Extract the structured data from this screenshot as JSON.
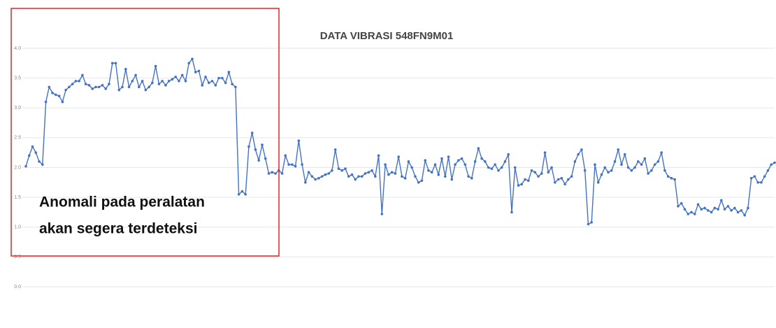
{
  "chart_data": {
    "type": "line",
    "title": "DATA VIBRASI 548FN9M01",
    "annotation": [
      "Anomali pada peralatan",
      "akan segera terdeteksi"
    ],
    "ylim": [
      0,
      4
    ],
    "yticks": [
      {
        "value": 0,
        "label": "0.0"
      },
      {
        "value": 0.5,
        "label": "0.5"
      },
      {
        "value": 1,
        "label": "1.0"
      },
      {
        "value": 1.5,
        "label": "1.5"
      },
      {
        "value": 2,
        "label": "2.0"
      },
      {
        "value": 2.5,
        "label": "2.5"
      },
      {
        "value": 3,
        "label": "3.0"
      },
      {
        "value": 3.5,
        "label": "3.5"
      },
      {
        "value": 4,
        "label": "4.0"
      }
    ],
    "grid": true,
    "series": [
      {
        "color": "#4472c4",
        "values": [
          2.02,
          2.2,
          2.35,
          2.25,
          2.1,
          2.05,
          3.1,
          3.35,
          3.25,
          3.22,
          3.2,
          3.1,
          3.3,
          3.35,
          3.4,
          3.45,
          3.45,
          3.55,
          3.4,
          3.38,
          3.32,
          3.35,
          3.35,
          3.38,
          3.32,
          3.4,
          3.75,
          3.75,
          3.3,
          3.35,
          3.65,
          3.35,
          3.45,
          3.55,
          3.35,
          3.45,
          3.3,
          3.35,
          3.42,
          3.7,
          3.4,
          3.45,
          3.38,
          3.45,
          3.48,
          3.52,
          3.45,
          3.55,
          3.45,
          3.75,
          3.82,
          3.6,
          3.62,
          3.38,
          3.52,
          3.42,
          3.45,
          3.38,
          3.5,
          3.5,
          3.42,
          3.6,
          3.4,
          3.35,
          1.55,
          1.6,
          1.55,
          2.35,
          2.58,
          2.3,
          2.12,
          2.38,
          2.15,
          1.9,
          1.92,
          1.9,
          1.95,
          1.9,
          2.2,
          2.05,
          2.05,
          2.02,
          2.45,
          2.05,
          1.75,
          1.92,
          1.85,
          1.8,
          1.82,
          1.85,
          1.88,
          1.9,
          1.95,
          2.3,
          1.98,
          1.95,
          1.98,
          1.85,
          1.88,
          1.8,
          1.85,
          1.85,
          1.9,
          1.92,
          1.95,
          1.85,
          2.2,
          1.22,
          2.05,
          1.88,
          1.92,
          1.9,
          2.18,
          1.85,
          1.82,
          2.1,
          2.0,
          1.85,
          1.75,
          1.78,
          2.12,
          1.95,
          1.92,
          2.05,
          1.88,
          2.15,
          1.85,
          2.18,
          1.8,
          2.05,
          2.12,
          2.15,
          2.05,
          1.85,
          1.82,
          2.1,
          2.32,
          2.15,
          2.1,
          2.0,
          1.98,
          2.05,
          1.95,
          2.0,
          2.1,
          2.22,
          1.25,
          2.0,
          1.7,
          1.72,
          1.8,
          1.78,
          1.95,
          1.92,
          1.85,
          1.9,
          2.25,
          1.92,
          2.0,
          1.75,
          1.8,
          1.82,
          1.72,
          1.8,
          1.85,
          2.1,
          2.22,
          2.3,
          1.95,
          1.05,
          1.08,
          2.05,
          1.75,
          1.88,
          2.0,
          1.92,
          1.95,
          2.1,
          2.3,
          2.05,
          2.22,
          2.0,
          1.95,
          2.0,
          2.1,
          2.05,
          2.15,
          1.9,
          1.95,
          2.05,
          2.1,
          2.25,
          1.95,
          1.85,
          1.82,
          1.8,
          1.35,
          1.4,
          1.3,
          1.22,
          1.25,
          1.22,
          1.38,
          1.3,
          1.32,
          1.28,
          1.25,
          1.32,
          1.3,
          1.45,
          1.3,
          1.35,
          1.28,
          1.32,
          1.25,
          1.28,
          1.2,
          1.32,
          1.82,
          1.85,
          1.75,
          1.75,
          1.85,
          1.95,
          2.05,
          2.08
        ]
      }
    ]
  }
}
